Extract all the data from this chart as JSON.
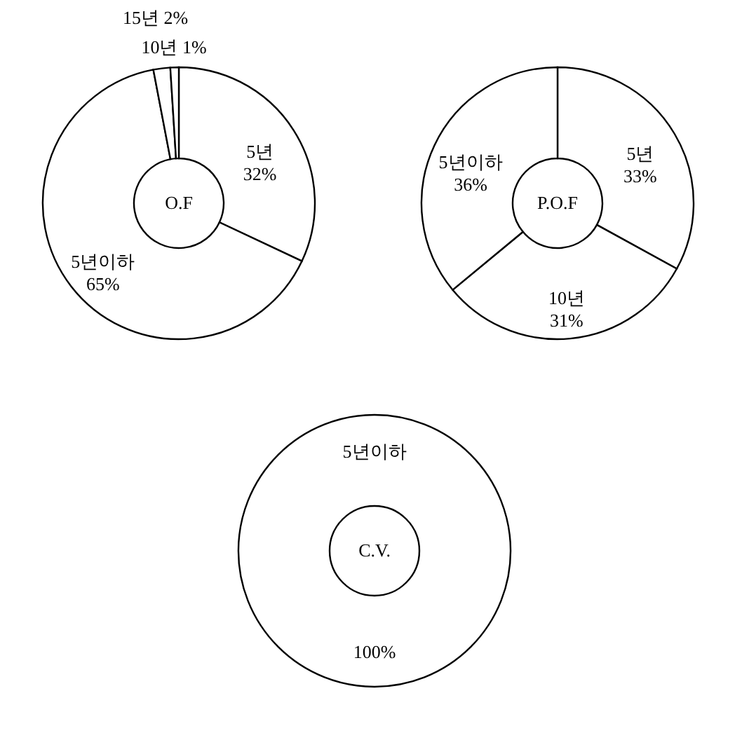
{
  "chart_data": [
    {
      "type": "donut",
      "title": "O.F",
      "categories": [
        "5년",
        "5년이하",
        "15년",
        "10년"
      ],
      "values": [
        32,
        65,
        2,
        1
      ],
      "colors": [
        "#ffffff",
        "#ffffff",
        "#ffffff",
        "#ffffff"
      ],
      "value_labels": [
        "32%",
        "65%",
        "2%",
        "1%"
      ]
    },
    {
      "type": "donut",
      "title": "P.O.F",
      "categories": [
        "5년",
        "10년",
        "5년이하"
      ],
      "values": [
        33,
        31,
        36
      ],
      "colors": [
        "#ffffff",
        "#ffffff",
        "#ffffff"
      ],
      "value_labels": [
        "33%",
        "31%",
        "36%"
      ]
    },
    {
      "type": "donut",
      "title": "C.V.",
      "categories": [
        "5년이하"
      ],
      "values": [
        100
      ],
      "colors": [
        "#ffffff"
      ],
      "value_labels": [
        "100%"
      ]
    }
  ]
}
